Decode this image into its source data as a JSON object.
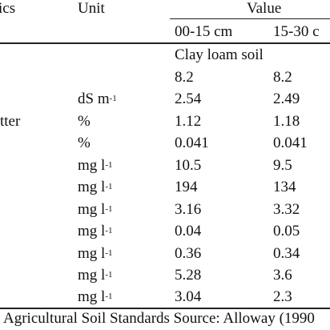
{
  "header": {
    "col_characteristics": "ics",
    "col_unit": "Unit",
    "col_value": "Value",
    "depth_1": "00-15 cm",
    "depth_2": "15-30 c"
  },
  "soil_type": "Clay loam soil",
  "rows": [
    {
      "param": "",
      "unit_base": "",
      "unit_exp": "",
      "v1": "8.2",
      "v2": "8.2"
    },
    {
      "param": "",
      "unit_base": "dS m",
      "unit_exp": "-1",
      "v1": "2.54",
      "v2": "2.49"
    },
    {
      "param": "tter",
      "unit_base": "%",
      "unit_exp": "",
      "v1": "1.12",
      "v2": "1.18"
    },
    {
      "param": "",
      "unit_base": "%",
      "unit_exp": "",
      "v1": "0.041",
      "v2": "0.041"
    },
    {
      "param": "",
      "unit_base": "mg l",
      "unit_exp": "-1",
      "v1": "10.5",
      "v2": "9.5"
    },
    {
      "param": "",
      "unit_base": "mg l",
      "unit_exp": "-1",
      "v1": "194",
      "v2": "134"
    },
    {
      "param": "",
      "unit_base": "mg l",
      "unit_exp": "-1",
      "v1": "3.16",
      "v2": "3.32"
    },
    {
      "param": "",
      "unit_base": "mg l",
      "unit_exp": "-1",
      "v1": "0.04",
      "v2": "0.05"
    },
    {
      "param": "",
      "unit_base": "mg l",
      "unit_exp": "-1",
      "v1": "0.36",
      "v2": "0.34"
    },
    {
      "param": "",
      "unit_base": "mg l",
      "unit_exp": "-1",
      "v1": "5.28",
      "v2": "3.6"
    },
    {
      "param": "",
      "unit_base": "mg l",
      "unit_exp": "-1",
      "v1": "3.04",
      "v2": "2.3"
    }
  ],
  "footer": "Agricultural Soil Standards Source: Alloway (1990"
}
